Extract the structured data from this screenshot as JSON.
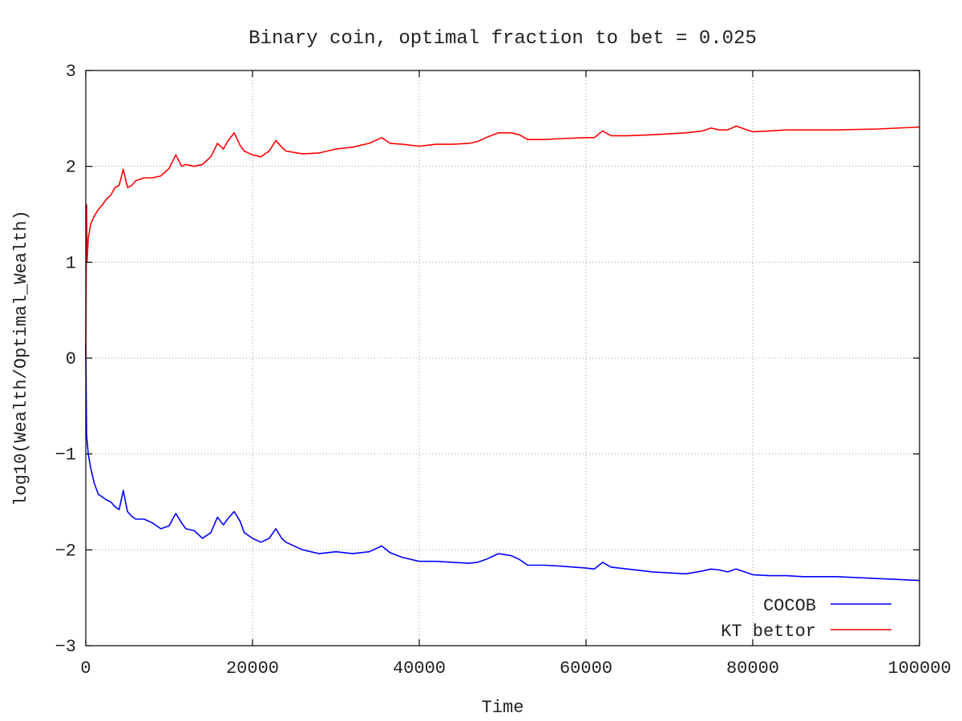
{
  "chart_data": {
    "type": "line",
    "title": "Binary coin, optimal fraction to bet = 0.025",
    "xlabel": "Time",
    "ylabel": "log10(Wealth/Optimal_Wealth)",
    "xlim": [
      0,
      100000
    ],
    "ylim": [
      -3,
      3
    ],
    "xticks": [
      0,
      20000,
      40000,
      60000,
      80000,
      100000
    ],
    "xtick_labels": [
      "0",
      "20000",
      "40000",
      "60000",
      "80000",
      "100000"
    ],
    "yticks": [
      -3,
      -2,
      -1,
      0,
      1,
      2,
      3
    ],
    "ytick_labels": [
      "−3",
      "−2",
      "−1",
      "0",
      "1",
      "2",
      "3"
    ],
    "grid": true,
    "legend_position": "bottom-right",
    "series": [
      {
        "name": "COCOB",
        "color": "#0000ff",
        "x": [
          0,
          100,
          300,
          600,
          1000,
          1500,
          2000,
          2500,
          3000,
          3500,
          4000,
          4500,
          5000,
          5500,
          6000,
          7000,
          8000,
          9000,
          10000,
          10800,
          11500,
          12000,
          13000,
          14000,
          15000,
          15800,
          16500,
          17000,
          17800,
          18500,
          19000,
          20000,
          21000,
          22000,
          22800,
          23500,
          24000,
          26000,
          28000,
          30000,
          32000,
          34000,
          35500,
          36500,
          38000,
          40000,
          42000,
          44000,
          46000,
          47000,
          48000,
          49500,
          51000,
          52000,
          53000,
          55000,
          57000,
          60000,
          61000,
          62000,
          63000,
          65000,
          68000,
          72000,
          74000,
          75000,
          76000,
          77000,
          78000,
          80000,
          82000,
          84000,
          86000,
          90000,
          95000,
          100000
        ],
        "y": [
          0.15,
          -0.8,
          -1.0,
          -1.15,
          -1.3,
          -1.42,
          -1.45,
          -1.48,
          -1.5,
          -1.55,
          -1.58,
          -1.38,
          -1.6,
          -1.65,
          -1.68,
          -1.68,
          -1.72,
          -1.78,
          -1.75,
          -1.62,
          -1.72,
          -1.78,
          -1.8,
          -1.88,
          -1.82,
          -1.66,
          -1.74,
          -1.68,
          -1.6,
          -1.7,
          -1.82,
          -1.88,
          -1.92,
          -1.88,
          -1.78,
          -1.88,
          -1.92,
          -2.0,
          -2.04,
          -2.02,
          -2.04,
          -2.02,
          -1.96,
          -2.03,
          -2.08,
          -2.12,
          -2.12,
          -2.13,
          -2.14,
          -2.13,
          -2.1,
          -2.04,
          -2.06,
          -2.1,
          -2.16,
          -2.16,
          -2.17,
          -2.19,
          -2.2,
          -2.13,
          -2.18,
          -2.2,
          -2.23,
          -2.25,
          -2.22,
          -2.2,
          -2.21,
          -2.23,
          -2.2,
          -2.26,
          -2.27,
          -2.27,
          -2.28,
          -2.28,
          -2.3,
          -2.32
        ]
      },
      {
        "name": "KT bettor",
        "color": "#ff0000",
        "x": [
          0,
          100,
          150,
          300,
          600,
          1000,
          1500,
          2000,
          2500,
          3000,
          3500,
          4000,
          4500,
          5000,
          5500,
          6000,
          7000,
          8000,
          9000,
          10000,
          10800,
          11500,
          12000,
          13000,
          14000,
          15000,
          15800,
          16500,
          17000,
          17800,
          18500,
          19000,
          20000,
          21000,
          22000,
          22800,
          23500,
          24000,
          26000,
          28000,
          30000,
          32000,
          34000,
          35500,
          36500,
          38000,
          40000,
          42000,
          44000,
          46000,
          47000,
          48000,
          49500,
          51000,
          52000,
          53000,
          55000,
          57000,
          60000,
          61000,
          62000,
          63000,
          65000,
          68000,
          72000,
          74000,
          75000,
          76000,
          77000,
          78000,
          80000,
          82000,
          84000,
          86000,
          90000,
          95000,
          100000
        ],
        "y": [
          0.0,
          1.6,
          1.0,
          1.25,
          1.4,
          1.48,
          1.55,
          1.6,
          1.66,
          1.7,
          1.78,
          1.8,
          1.97,
          1.78,
          1.8,
          1.85,
          1.88,
          1.88,
          1.9,
          1.98,
          2.12,
          2.0,
          2.02,
          2.0,
          2.02,
          2.1,
          2.24,
          2.18,
          2.26,
          2.35,
          2.22,
          2.16,
          2.12,
          2.1,
          2.16,
          2.27,
          2.2,
          2.16,
          2.13,
          2.14,
          2.18,
          2.2,
          2.24,
          2.3,
          2.24,
          2.23,
          2.21,
          2.23,
          2.23,
          2.24,
          2.26,
          2.3,
          2.35,
          2.35,
          2.33,
          2.28,
          2.28,
          2.29,
          2.3,
          2.3,
          2.37,
          2.32,
          2.32,
          2.33,
          2.35,
          2.37,
          2.4,
          2.38,
          2.38,
          2.42,
          2.36,
          2.37,
          2.38,
          2.38,
          2.38,
          2.39,
          2.41
        ]
      }
    ]
  }
}
